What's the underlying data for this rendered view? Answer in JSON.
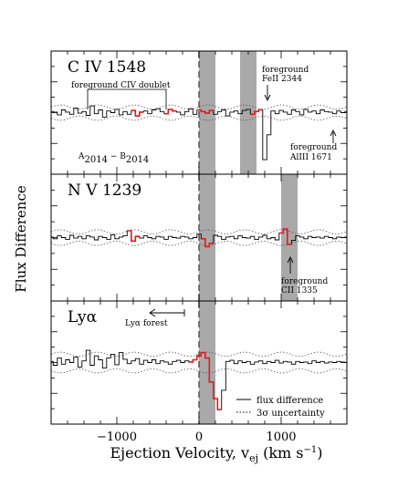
{
  "figure": {
    "ylabel": "Flux Difference",
    "xlabel_main": "Ejection Velocity, v",
    "xlabel_sub": "ej",
    "xlabel_unit": " (km s",
    "xlabel_unit_sup": "−1",
    "xlabel_close": ")"
  },
  "chart_data": [
    {
      "type": "line",
      "panel": 1,
      "label": "C IV 1548",
      "x": [
        -1800,
        -1750,
        -1700,
        -1650,
        -1600,
        -1550,
        -1500,
        -1450,
        -1400,
        -1350,
        -1300,
        -1250,
        -1200,
        -1150,
        -1100,
        -1050,
        -1000,
        -950,
        -900,
        -850,
        -800,
        -750,
        -700,
        -650,
        -600,
        -550,
        -500,
        -450,
        -400,
        -350,
        -300,
        -250,
        -200,
        -150,
        -100,
        -50,
        0,
        50,
        100,
        150,
        200,
        250,
        300,
        350,
        400,
        450,
        500,
        550,
        600,
        650,
        700,
        750,
        800,
        850,
        900,
        950,
        1000,
        1050,
        1100,
        1150,
        1200,
        1250,
        1300,
        1350,
        1400,
        1450,
        1500,
        1550,
        1600,
        1650,
        1700,
        1750,
        1800
      ],
      "y": [
        0.02,
        0.01,
        -0.04,
        0.05,
        0.01,
        -0.03,
        0.08,
        -0.01,
        0.02,
        -0.05,
        0.12,
        -0.02,
        0.05,
        -0.08,
        0.03,
        0.0,
        0.06,
        -0.04,
        0.02,
        -0.03,
        0.04,
        -0.06,
        0.01,
        0.03,
        -0.02,
        0.05,
        0.07,
        0.02,
        -0.02,
        0.06,
        0.03,
        0.01,
        -0.04,
        0.02,
        0.07,
        -0.03,
        0.05,
        0.02,
        -0.01,
        0.04,
        -0.03,
        0.02,
        0.05,
        -0.06,
        0.01,
        0.03,
        -0.02,
        0.04,
        0.06,
        -0.03,
        0.02,
        0.05,
        -0.85,
        -0.4,
        0.03,
        -0.02,
        0.04,
        0.01,
        -0.03,
        0.05,
        0.02,
        -0.04,
        0.06,
        0.01,
        0.03,
        -0.02,
        0.05,
        0.02,
        0.01,
        -0.02,
        0.03,
        0.0,
        0.02
      ],
      "red_ranges": [
        [
          -800,
          -700
        ],
        [
          -400,
          -300
        ],
        [
          0,
          150
        ],
        [
          650,
          750
        ]
      ],
      "shaded": [
        [
          0,
          200
        ],
        [
          500,
          700
        ]
      ],
      "annotations": [
        {
          "text": "foreground CIV doublet"
        },
        {
          "text": "foreground",
          "text2": "FeII 2344"
        },
        {
          "text": "foreground",
          "text2": "AlIII 1671"
        },
        {
          "text": "A",
          "sub": "2014",
          "mid": " − B",
          "sub2": "2014"
        }
      ]
    },
    {
      "type": "line",
      "panel": 2,
      "label": "N V 1239",
      "x": [
        -1800,
        -1750,
        -1700,
        -1650,
        -1600,
        -1550,
        -1500,
        -1450,
        -1400,
        -1350,
        -1300,
        -1250,
        -1200,
        -1150,
        -1100,
        -1050,
        -1000,
        -950,
        -900,
        -850,
        -800,
        -750,
        -700,
        -650,
        -600,
        -550,
        -500,
        -450,
        -400,
        -350,
        -300,
        -250,
        -200,
        -150,
        -100,
        -50,
        0,
        50,
        100,
        150,
        200,
        250,
        300,
        350,
        400,
        450,
        500,
        550,
        600,
        650,
        700,
        750,
        800,
        850,
        900,
        950,
        1000,
        1050,
        1100,
        1150,
        1200,
        1250,
        1300,
        1350,
        1400,
        1450,
        1500,
        1550,
        1600,
        1650,
        1700,
        1750,
        1800
      ],
      "y": [
        0.01,
        -0.02,
        0.03,
        0.0,
        -0.03,
        0.04,
        -0.01,
        0.02,
        -0.02,
        0.03,
        0.01,
        -0.04,
        0.02,
        0.0,
        -0.03,
        0.05,
        -0.02,
        0.01,
        0.03,
        0.12,
        -0.06,
        0.02,
        -0.01,
        0.03,
        0.0,
        -0.02,
        0.02,
        0.01,
        -0.03,
        0.02,
        0.0,
        -0.01,
        0.02,
        0.01,
        -0.02,
        0.0,
        0.06,
        -0.02,
        -0.16,
        -0.1,
        0.04,
        0.02,
        -0.03,
        0.01,
        0.02,
        -0.02,
        0.03,
        0.0,
        -0.01,
        0.02,
        -0.03,
        0.01,
        0.04,
        -0.02,
        0.0,
        -0.04,
        0.08,
        0.15,
        -0.12,
        -0.05,
        0.03,
        0.01,
        -0.02,
        0.02,
        0.0,
        0.01,
        -0.01,
        0.02,
        0.0,
        -0.02,
        0.01,
        0.0,
        0.01
      ],
      "red_ranges": [
        [
          -850,
          -750
        ],
        [
          50,
          150
        ],
        [
          1000,
          1100
        ]
      ],
      "shaded": [
        [
          0,
          200
        ],
        [
          1000,
          1200
        ]
      ],
      "annotations": [
        {
          "text": "foreground",
          "text2": "CII 1335"
        }
      ]
    },
    {
      "type": "line",
      "panel": 3,
      "label": "Lyα",
      "x": [
        -1800,
        -1750,
        -1700,
        -1650,
        -1600,
        -1550,
        -1500,
        -1450,
        -1400,
        -1350,
        -1300,
        -1250,
        -1200,
        -1150,
        -1100,
        -1050,
        -1000,
        -950,
        -900,
        -850,
        -800,
        -750,
        -700,
        -650,
        -600,
        -550,
        -500,
        -450,
        -400,
        -350,
        -300,
        -250,
        -200,
        -150,
        -100,
        -50,
        0,
        50,
        100,
        150,
        200,
        250,
        300,
        350,
        400,
        450,
        500,
        550,
        600,
        650,
        700,
        750,
        800,
        850,
        900,
        950,
        1000,
        1050,
        1100,
        1150,
        1200,
        1250,
        1300,
        1350,
        1400,
        1450,
        1500,
        1550,
        1600,
        1650,
        1700,
        1750,
        1800
      ],
      "y": [
        0.02,
        -0.05,
        0.08,
        -0.03,
        0.05,
        0.0,
        0.1,
        -0.08,
        0.03,
        0.22,
        -0.05,
        0.12,
        0.05,
        -0.1,
        0.08,
        0.15,
        -0.04,
        0.18,
        0.06,
        -0.02,
        0.03,
        0.07,
        -0.03,
        0.04,
        0.0,
        0.05,
        -0.02,
        0.03,
        0.01,
        -0.03,
        0.02,
        0.04,
        0.0,
        0.03,
        0.01,
        0.05,
        0.12,
        0.18,
        0.08,
        -0.35,
        -0.65,
        -0.85,
        -0.5,
        0.02,
        0.04,
        -0.02,
        0.03,
        0.0,
        0.02,
        -0.03,
        0.01,
        0.03,
        -0.02,
        0.02,
        0.0,
        0.04,
        -0.01,
        0.02,
        0.01,
        -0.03,
        0.02,
        0.0,
        0.01,
        -0.02,
        0.03,
        0.0,
        0.02,
        -0.01,
        0.01,
        0.0,
        0.02,
        0.01,
        0.0
      ],
      "red_ranges": [
        [
          -100,
          250
        ]
      ],
      "shaded": [
        [
          0,
          200
        ]
      ],
      "annotations": [
        {
          "text": "Lyα forest"
        }
      ]
    }
  ],
  "axis": {
    "xlim": [
      -1800,
      1800
    ],
    "xticks": [
      -1000,
      0,
      1000
    ],
    "xtick_labels": [
      "−1000",
      "0",
      "1000"
    ]
  },
  "legend": {
    "solid_label": "flux difference",
    "dotted_label": "3σ uncertainty"
  },
  "colors": {
    "data": "#000000",
    "highlight": "#e41a1c",
    "shade": "#a9a9a9",
    "uncertainty": "#555555"
  }
}
